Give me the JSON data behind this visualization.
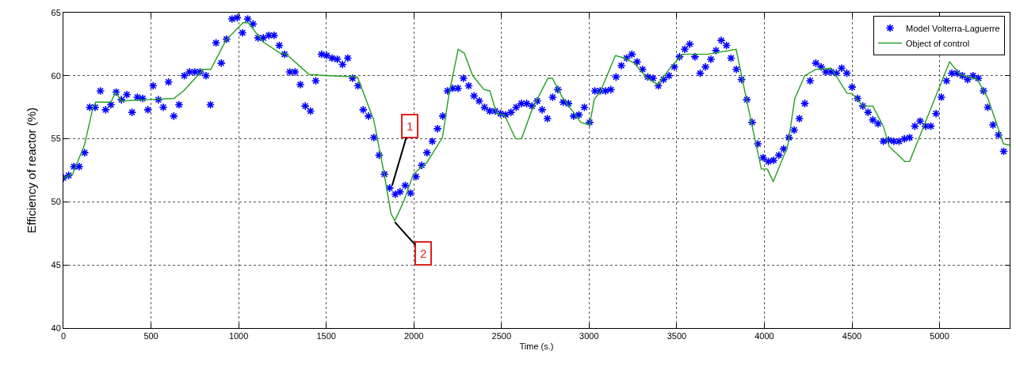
{
  "chart_data": {
    "type": "line",
    "xlabel": "Time (s.)",
    "ylabel": "Efficiency of reactor (%)",
    "xlim": [
      0,
      5400
    ],
    "ylim": [
      40,
      65
    ],
    "xticks": [
      0,
      500,
      1000,
      1500,
      2000,
      2500,
      3000,
      3500,
      4000,
      4500,
      5000
    ],
    "yticks": [
      40,
      45,
      50,
      55,
      60,
      65
    ],
    "grid": true,
    "legend": "top right",
    "series": [
      {
        "name": "Model Volterra-Laguerre",
        "type": "scatter",
        "marker": "cross",
        "color": "#0000ff",
        "x": [
          0,
          30,
          60,
          90,
          121,
          150,
          181,
          211,
          241,
          271,
          301,
          331,
          362,
          392,
          422,
          452,
          482,
          512,
          542,
          570,
          600,
          630,
          660,
          690,
          720,
          750,
          780,
          814,
          839,
          871,
          901,
          931,
          962,
          992,
          1022,
          1052,
          1082,
          1111,
          1141,
          1172,
          1202,
          1232,
          1262,
          1292,
          1322,
          1352,
          1380,
          1410,
          1440,
          1473,
          1503,
          1533,
          1563,
          1593,
          1623,
          1650,
          1681,
          1711,
          1741,
          1772,
          1802,
          1832,
          1862,
          1894,
          1921,
          1951,
          1981,
          2012,
          2045,
          2075,
          2105,
          2135,
          2165,
          2192,
          2222,
          2252,
          2283,
          2313,
          2343,
          2373,
          2403,
          2433,
          2464,
          2494,
          2524,
          2554,
          2584,
          2614,
          2644,
          2674,
          2704,
          2732,
          2762,
          2792,
          2822,
          2852,
          2882,
          2912,
          2942,
          2973,
          3003,
          3033,
          3063,
          3094,
          3124,
          3154,
          3184,
          3214,
          3244,
          3274,
          3305,
          3335,
          3365,
          3395,
          3425,
          3456,
          3486,
          3516,
          3546,
          3574,
          3604,
          3634,
          3664,
          3695,
          3724,
          3754,
          3784,
          3810,
          3840,
          3870,
          3900,
          3930,
          3963,
          3993,
          4023,
          4053,
          4083,
          4110,
          4140,
          4170,
          4200,
          4231,
          4261,
          4294,
          4324,
          4351,
          4381,
          4411,
          4441,
          4471,
          4501,
          4532,
          4562,
          4592,
          4619,
          4649,
          4679,
          4709,
          4739,
          4769,
          4799,
          4829,
          4859,
          4889,
          4920,
          4950,
          4980,
          5010,
          5040,
          5070,
          5100,
          5130,
          5160,
          5191,
          5221,
          5251,
          5275,
          5305,
          5336,
          5366
        ],
        "values": [
          51.9,
          52.1,
          52.8,
          52.8,
          53.9,
          57.5,
          57.5,
          58.8,
          57.3,
          57.7,
          58.7,
          58.1,
          58.5,
          57.1,
          58.3,
          58.2,
          57.3,
          59.2,
          58.1,
          57.5,
          59.5,
          56.8,
          57.7,
          60.0,
          60.3,
          60.3,
          60.3,
          60.0,
          57.7,
          62.6,
          61.0,
          62.9,
          64.5,
          64.6,
          63.4,
          64.5,
          64.1,
          63.0,
          63.0,
          63.2,
          63.2,
          62.4,
          61.7,
          60.3,
          60.3,
          59.3,
          57.6,
          57.2,
          59.6,
          61.7,
          61.6,
          61.4,
          61.3,
          60.9,
          61.4,
          59.8,
          59.2,
          57.3,
          56.8,
          55.1,
          53.7,
          52.2,
          51.1,
          50.6,
          50.8,
          51.3,
          50.7,
          52.0,
          52.9,
          53.9,
          54.8,
          55.8,
          56.8,
          58.8,
          59.0,
          59.0,
          59.8,
          59.2,
          58.4,
          58.0,
          57.5,
          57.2,
          57.2,
          57.0,
          56.9,
          57.1,
          57.5,
          57.8,
          57.8,
          57.6,
          58.0,
          57.3,
          56.6,
          58.3,
          58.9,
          57.9,
          57.8,
          56.8,
          56.9,
          57.5,
          56.3,
          58.8,
          58.8,
          58.8,
          58.9,
          59.9,
          60.8,
          61.4,
          61.7,
          61.1,
          60.5,
          59.9,
          59.8,
          59.2,
          59.7,
          60.0,
          60.7,
          61.5,
          62.1,
          62.5,
          61.5,
          60.2,
          60.7,
          61.3,
          62.0,
          62.8,
          62.4,
          61.4,
          60.5,
          59.7,
          58.1,
          56.3,
          54.6,
          53.5,
          53.2,
          53.3,
          53.7,
          54.2,
          55.1,
          55.7,
          56.6,
          57.8,
          59.6,
          61.0,
          60.7,
          60.3,
          60.3,
          60.2,
          60.6,
          60.2,
          59.1,
          58.2,
          57.6,
          57.1,
          56.5,
          56.2,
          54.8,
          54.9,
          54.8,
          54.8,
          55.0,
          55.1,
          56.0,
          56.4,
          56.0,
          56.0,
          57.0,
          58.3,
          59.6,
          60.2,
          60.2,
          60.0,
          59.7,
          60.0,
          59.8,
          58.8,
          57.5,
          56.1,
          55.3,
          54.0
        ]
      },
      {
        "name": "Object of control",
        "marker": "none",
        "line_style": "solid",
        "color": "#22a022",
        "x": [
          0,
          53,
          120,
          166,
          184,
          271,
          298,
          331,
          475,
          630,
          686,
          746,
          799,
          841,
          927,
          1025,
          1055,
          1138,
          1236,
          1273,
          1402,
          1515,
          1678,
          1771,
          1831,
          1869,
          1891,
          1944,
          1997,
          2073,
          2163,
          2200,
          2253,
          2287,
          2336,
          2401,
          2434,
          2472,
          2517,
          2580,
          2614,
          2674,
          2765,
          2790,
          2847,
          2953,
          3003,
          3029,
          3066,
          3150,
          3203,
          3257,
          3332,
          3392,
          3467,
          3535,
          3678,
          3839,
          3900,
          3983,
          4017,
          4051,
          4133,
          4174,
          4231,
          4291,
          4382,
          4472,
          4501,
          4562,
          4619,
          4679,
          4712,
          4802,
          4829,
          5057,
          5117,
          5216,
          5276,
          5365,
          5400
        ],
        "values": [
          51.9,
          52.2,
          54.5,
          57.3,
          57.9,
          57.9,
          58.7,
          58.0,
          58.1,
          58.2,
          58.8,
          59.7,
          60.5,
          60.5,
          62.8,
          64.2,
          64.2,
          62.7,
          61.8,
          61.7,
          60.1,
          60.0,
          59.9,
          56.5,
          52.2,
          49.1,
          48.5,
          50.1,
          52.2,
          53.1,
          55.1,
          58.5,
          62.1,
          61.8,
          60.0,
          58.9,
          58.8,
          57.0,
          56.9,
          55.0,
          55.0,
          57.3,
          59.8,
          59.8,
          58.3,
          56.3,
          56.1,
          58.1,
          58.8,
          61.6,
          61.4,
          61.0,
          59.8,
          59.3,
          60.7,
          61.7,
          61.7,
          62.1,
          58.0,
          52.6,
          52.6,
          51.6,
          54.4,
          58.2,
          60.0,
          60.5,
          60.6,
          58.6,
          58.6,
          57.6,
          57.6,
          56.0,
          54.4,
          53.2,
          53.2,
          61.1,
          60.1,
          59.7,
          58.2,
          54.6,
          54.5
        ]
      }
    ],
    "annotations": [
      {
        "text": "1",
        "x": 1876,
        "y": 51.3
      },
      {
        "text": "2",
        "x": 1891,
        "y": 48.4
      }
    ]
  }
}
